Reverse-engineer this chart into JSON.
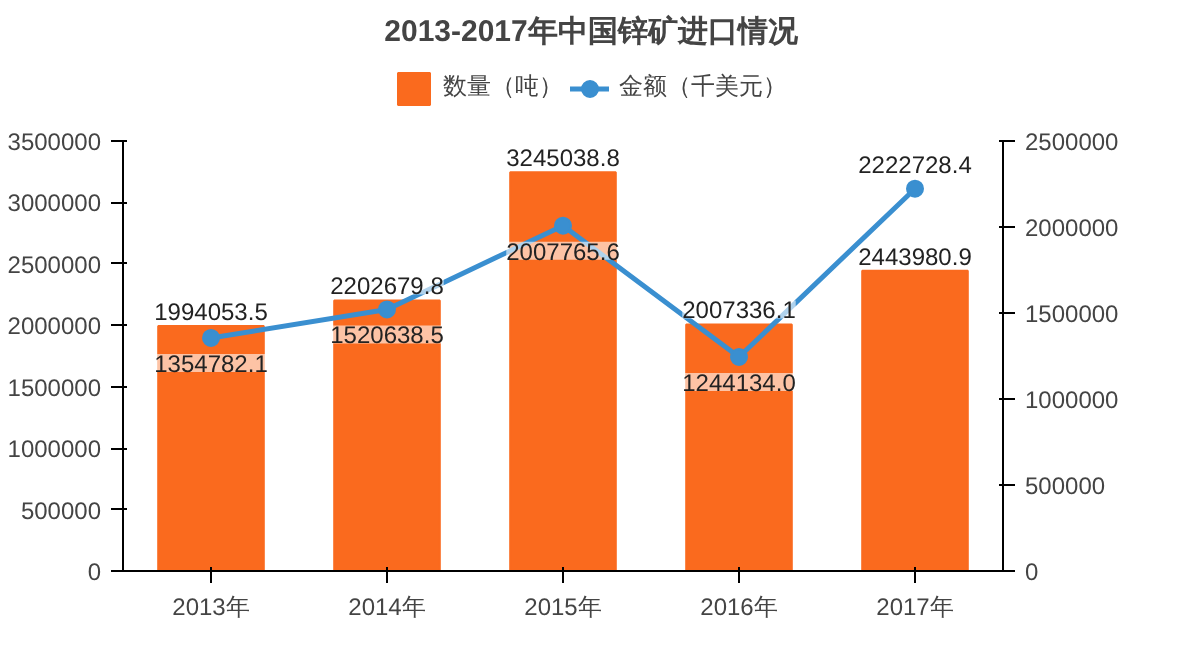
{
  "chart_data": {
    "type": "bar",
    "title": "2013-2017年中国锌矿进口情况",
    "categories": [
      "2013年",
      "2014年",
      "2015年",
      "2016年",
      "2017年"
    ],
    "series": [
      {
        "name": "数量（吨）",
        "color": "#fa6a1e",
        "values": [
          1994053.5,
          2202679.8,
          3245038.8,
          2007336.1,
          2443980.9
        ],
        "value_labels": [
          "1994053.5",
          "2202679.8",
          "3245038.8",
          "2007336.1",
          "2443980.9"
        ]
      },
      {
        "name": "金额（千美元）",
        "type": "line",
        "axis": "y2",
        "color": "#3a8fd0",
        "marker": "circle",
        "values": [
          1354782.1,
          1520638.5,
          2007765.6,
          1244134.0,
          2222728.4
        ],
        "value_labels": [
          "1354782.1",
          "1520638.5",
          "2007765.6",
          "1244134.0",
          "2222728.4"
        ]
      }
    ],
    "ylim": [
      0,
      3500000
    ],
    "yticks": [
      0,
      500000,
      1000000,
      1500000,
      2000000,
      2500000,
      3000000,
      3500000
    ],
    "y2lim": [
      0,
      2500000
    ],
    "y2ticks": [
      0,
      500000,
      1000000,
      1500000,
      2000000,
      2500000
    ],
    "legend": "top",
    "grid": false,
    "line_style": "solid"
  }
}
